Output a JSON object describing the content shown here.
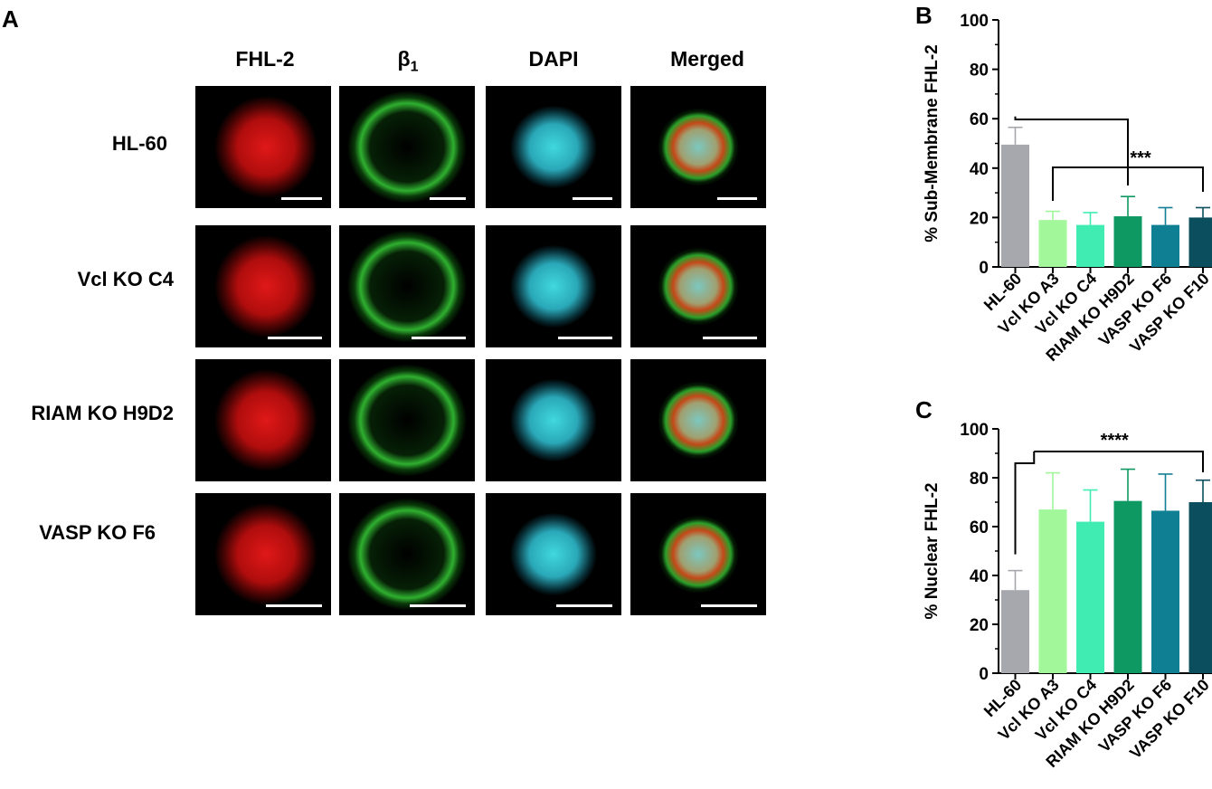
{
  "panel_a": {
    "letter": "A",
    "columns": [
      "FHL-2",
      "β",
      "DAPI",
      "Merged"
    ],
    "beta_subscript": "1",
    "rows": [
      "HL-60",
      "Vcl KO C4",
      "RIAM KO H9D2",
      "VASP KO F6"
    ]
  },
  "chart_data": [
    {
      "letter": "B",
      "type": "bar",
      "categories": [
        "HL-60",
        "Vcl KO A3",
        "Vcl KO C4",
        "RIAM KO H9D2",
        "VASP KO F6",
        "VASP KO F10"
      ],
      "values": [
        49.5,
        19,
        17,
        20.5,
        17,
        20
      ],
      "errors": [
        7,
        3.5,
        5,
        8,
        7,
        4
      ],
      "colors": [
        "#a7a7ae",
        "#a2f79b",
        "#40ecb2",
        "#0e9962",
        "#0f7f93",
        "#0b4f5e"
      ],
      "ylabel": "% Sub-Membrane FHL-2",
      "ylim": [
        0,
        100
      ],
      "yticks": [
        0,
        20,
        40,
        60,
        80,
        100
      ],
      "significance": "***"
    },
    {
      "letter": "C",
      "type": "bar",
      "categories": [
        "HL-60",
        "Vcl KO A3",
        "Vcl KO C4",
        "RIAM KO H9D2",
        "VASP KO F6",
        "VASP KO F10"
      ],
      "values": [
        34,
        67,
        62,
        70.5,
        66.5,
        70
      ],
      "errors": [
        8,
        15,
        13,
        13,
        15,
        9
      ],
      "colors": [
        "#a7a7ae",
        "#a2f79b",
        "#40ecb2",
        "#0e9962",
        "#0f7f93",
        "#0b4f5e"
      ],
      "ylabel": "% Nuclear FHL-2",
      "ylim": [
        0,
        100
      ],
      "yticks": [
        0,
        20,
        40,
        60,
        80,
        100
      ],
      "significance": "****"
    }
  ]
}
